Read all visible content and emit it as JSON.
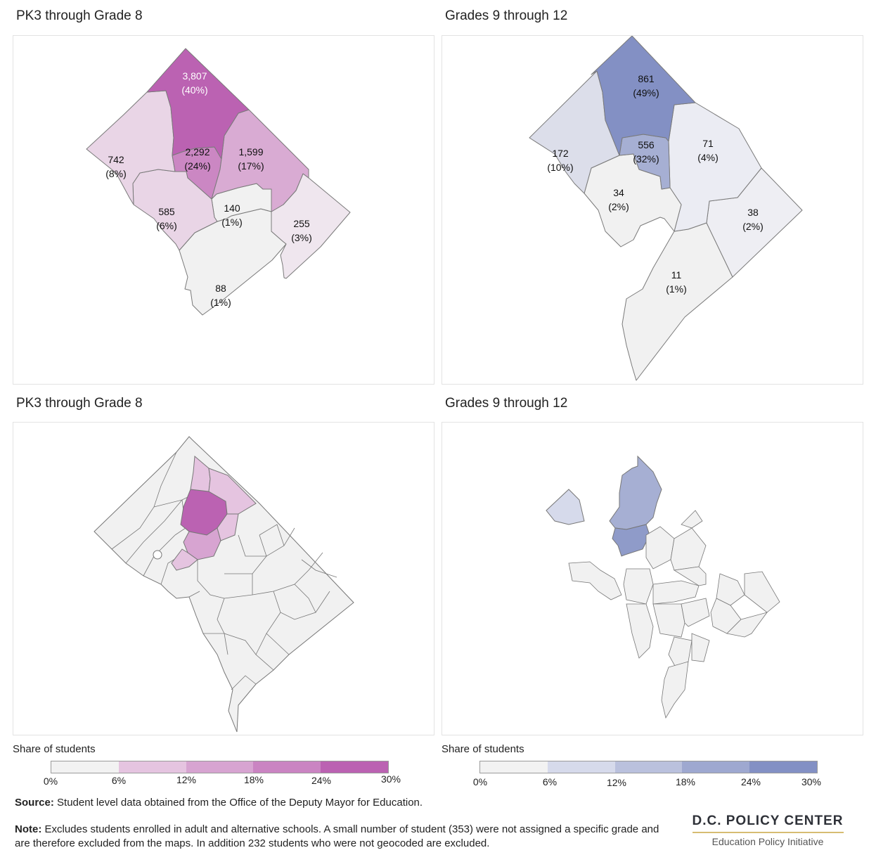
{
  "panels": [
    {
      "title": "PK3 through Grade 8"
    },
    {
      "title": "Grades 9 through 12"
    },
    {
      "title": "PK3 through Grade 8"
    },
    {
      "title": "Grades 9 through 12"
    }
  ],
  "ward_maps": {
    "pk8": {
      "wards": [
        {
          "id": "ward-4",
          "count": "3,807",
          "pct": "(40%)",
          "share": 0.4
        },
        {
          "id": "ward-1",
          "count": "2,292",
          "pct": "(24%)",
          "share": 0.24
        },
        {
          "id": "ward-5",
          "count": "1,599",
          "pct": "(17%)",
          "share": 0.17
        },
        {
          "id": "ward-3",
          "count": "742",
          "pct": "(8%)",
          "share": 0.08
        },
        {
          "id": "ward-2",
          "count": "585",
          "pct": "(6%)",
          "share": 0.06
        },
        {
          "id": "ward-6",
          "count": "140",
          "pct": "(1%)",
          "share": 0.01
        },
        {
          "id": "ward-7",
          "count": "255",
          "pct": "(3%)",
          "share": 0.03
        },
        {
          "id": "ward-8",
          "count": "88",
          "pct": "(1%)",
          "share": 0.01
        }
      ]
    },
    "hs": {
      "wards": [
        {
          "id": "ward-4",
          "count": "861",
          "pct": "(49%)",
          "share": 0.49
        },
        {
          "id": "ward-1",
          "count": "556",
          "pct": "(32%)",
          "share": 0.32
        },
        {
          "id": "ward-5",
          "count": "71",
          "pct": "(4%)",
          "share": 0.04
        },
        {
          "id": "ward-3",
          "count": "172",
          "pct": "(10%)",
          "share": 0.1
        },
        {
          "id": "ward-2",
          "count": "34",
          "pct": "(2%)",
          "share": 0.02
        },
        {
          "id": "ward-7",
          "count": "38",
          "pct": "(2%)",
          "share": 0.02
        },
        {
          "id": "ward-8",
          "count": "11",
          "pct": "(1%)",
          "share": 0.01
        }
      ]
    }
  },
  "legends": [
    {
      "title": "Share of students",
      "ticks": [
        "0%",
        "6%",
        "12%",
        "18%",
        "24%",
        "30%"
      ],
      "colors": [
        "#f2f2f2",
        "#e5c4e0",
        "#d7a4d1",
        "#ca84c2",
        "#bb62b2"
      ]
    },
    {
      "title": "Share of students",
      "ticks": [
        "0%",
        "6%",
        "12%",
        "18%",
        "24%",
        "30%"
      ],
      "colors": [
        "#f2f2f2",
        "#d6daeb",
        "#bac1dd",
        "#9ea8d0",
        "#8390c4"
      ]
    }
  ],
  "colors": {
    "pk8_high": "#bb62b2",
    "hs_high": "#8390c4",
    "empty": "#f1f1f1",
    "border": "#777777"
  },
  "source": {
    "label": "Source:",
    "text": " Student level data obtained from the Office of the Deputy Mayor for Education."
  },
  "note": {
    "label": "Note:",
    "text": " Excludes students enrolled in adult and alternative schools. A small number of student (353) were not assigned a specific grade and are therefore excluded from the maps. In addition 232 students who were not geocoded are excluded."
  },
  "logo": {
    "name": "D.C. POLICY CENTER",
    "subtitle": "Education Policy Initiative"
  }
}
